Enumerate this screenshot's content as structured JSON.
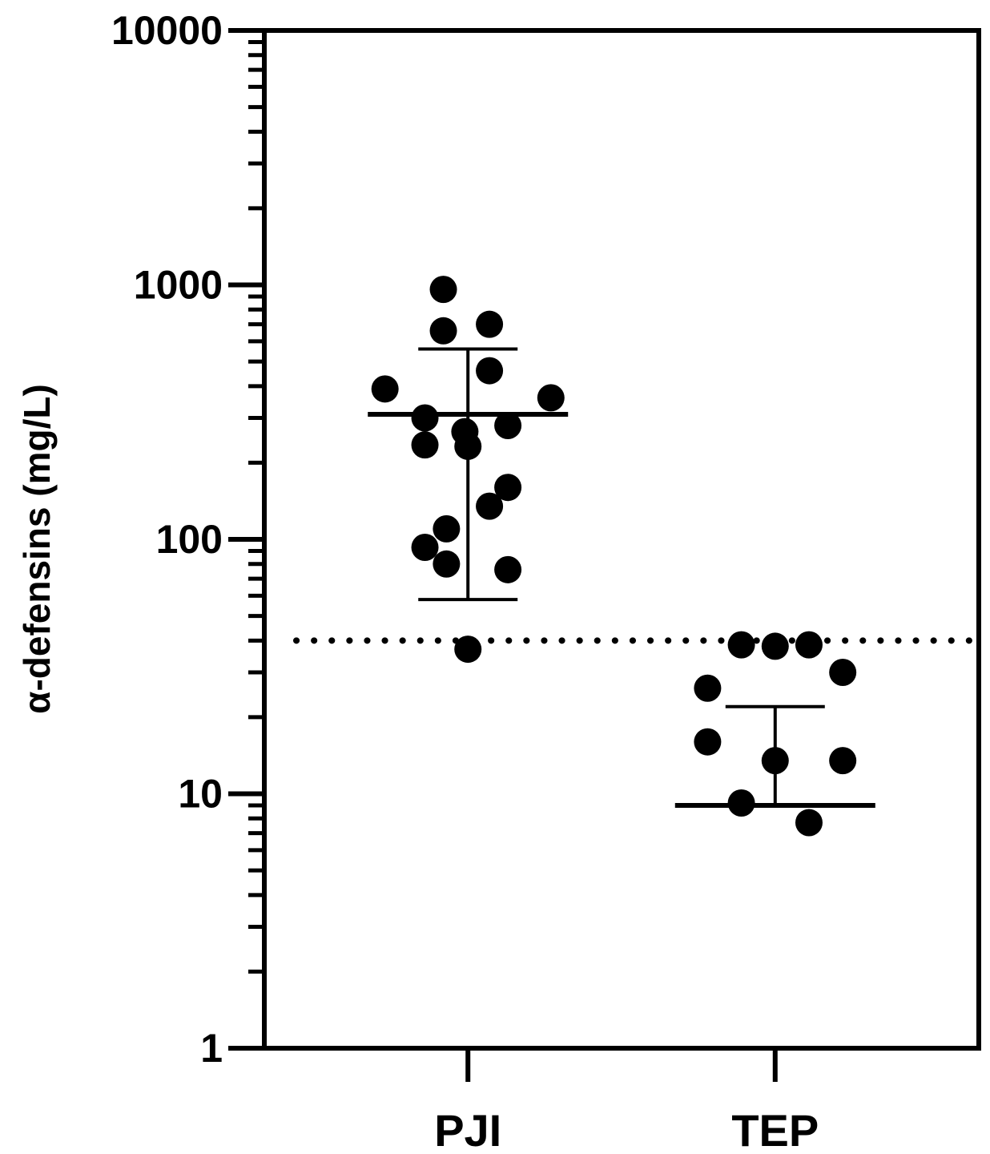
{
  "chart_data": {
    "type": "scatter",
    "ylabel": "α-defensins (mg/L)",
    "yscale": "log",
    "ylim": [
      1,
      10000
    ],
    "y_ticks": [
      {
        "value": 1,
        "label": "1"
      },
      {
        "value": 10,
        "label": "10"
      },
      {
        "value": 100,
        "label": "100"
      },
      {
        "value": 1000,
        "label": "1000"
      },
      {
        "value": 10000,
        "label": "10000"
      }
    ],
    "categories": [
      "PJI",
      "TEP"
    ],
    "threshold": 40,
    "groups": [
      {
        "category": "PJI",
        "median": 310,
        "lower": 58,
        "upper": 560,
        "points": [
          {
            "jitter": -0.08,
            "value": 960
          },
          {
            "jitter": -0.08,
            "value": 660
          },
          {
            "jitter": 0.07,
            "value": 700
          },
          {
            "jitter": 0.07,
            "value": 460
          },
          {
            "jitter": -0.27,
            "value": 390
          },
          {
            "jitter": 0.27,
            "value": 360
          },
          {
            "jitter": -0.14,
            "value": 300
          },
          {
            "jitter": -0.01,
            "value": 265
          },
          {
            "jitter": 0.13,
            "value": 280
          },
          {
            "jitter": -0.14,
            "value": 235
          },
          {
            "jitter": 0.0,
            "value": 232
          },
          {
            "jitter": 0.13,
            "value": 160
          },
          {
            "jitter": 0.07,
            "value": 135
          },
          {
            "jitter": -0.07,
            "value": 110
          },
          {
            "jitter": -0.14,
            "value": 93
          },
          {
            "jitter": -0.07,
            "value": 80
          },
          {
            "jitter": 0.13,
            "value": 76
          },
          {
            "jitter": 0.0,
            "value": 37
          }
        ]
      },
      {
        "category": "TEP",
        "median": 9,
        "lower": 9,
        "upper": 22,
        "points": [
          {
            "jitter": -0.11,
            "value": 38.5
          },
          {
            "jitter": 0.0,
            "value": 38
          },
          {
            "jitter": 0.11,
            "value": 38.5
          },
          {
            "jitter": 0.22,
            "value": 30
          },
          {
            "jitter": -0.22,
            "value": 26
          },
          {
            "jitter": -0.22,
            "value": 16
          },
          {
            "jitter": 0.0,
            "value": 13.5
          },
          {
            "jitter": 0.22,
            "value": 13.5
          },
          {
            "jitter": -0.11,
            "value": 9.2
          },
          {
            "jitter": 0.11,
            "value": 7.7
          }
        ]
      }
    ]
  }
}
